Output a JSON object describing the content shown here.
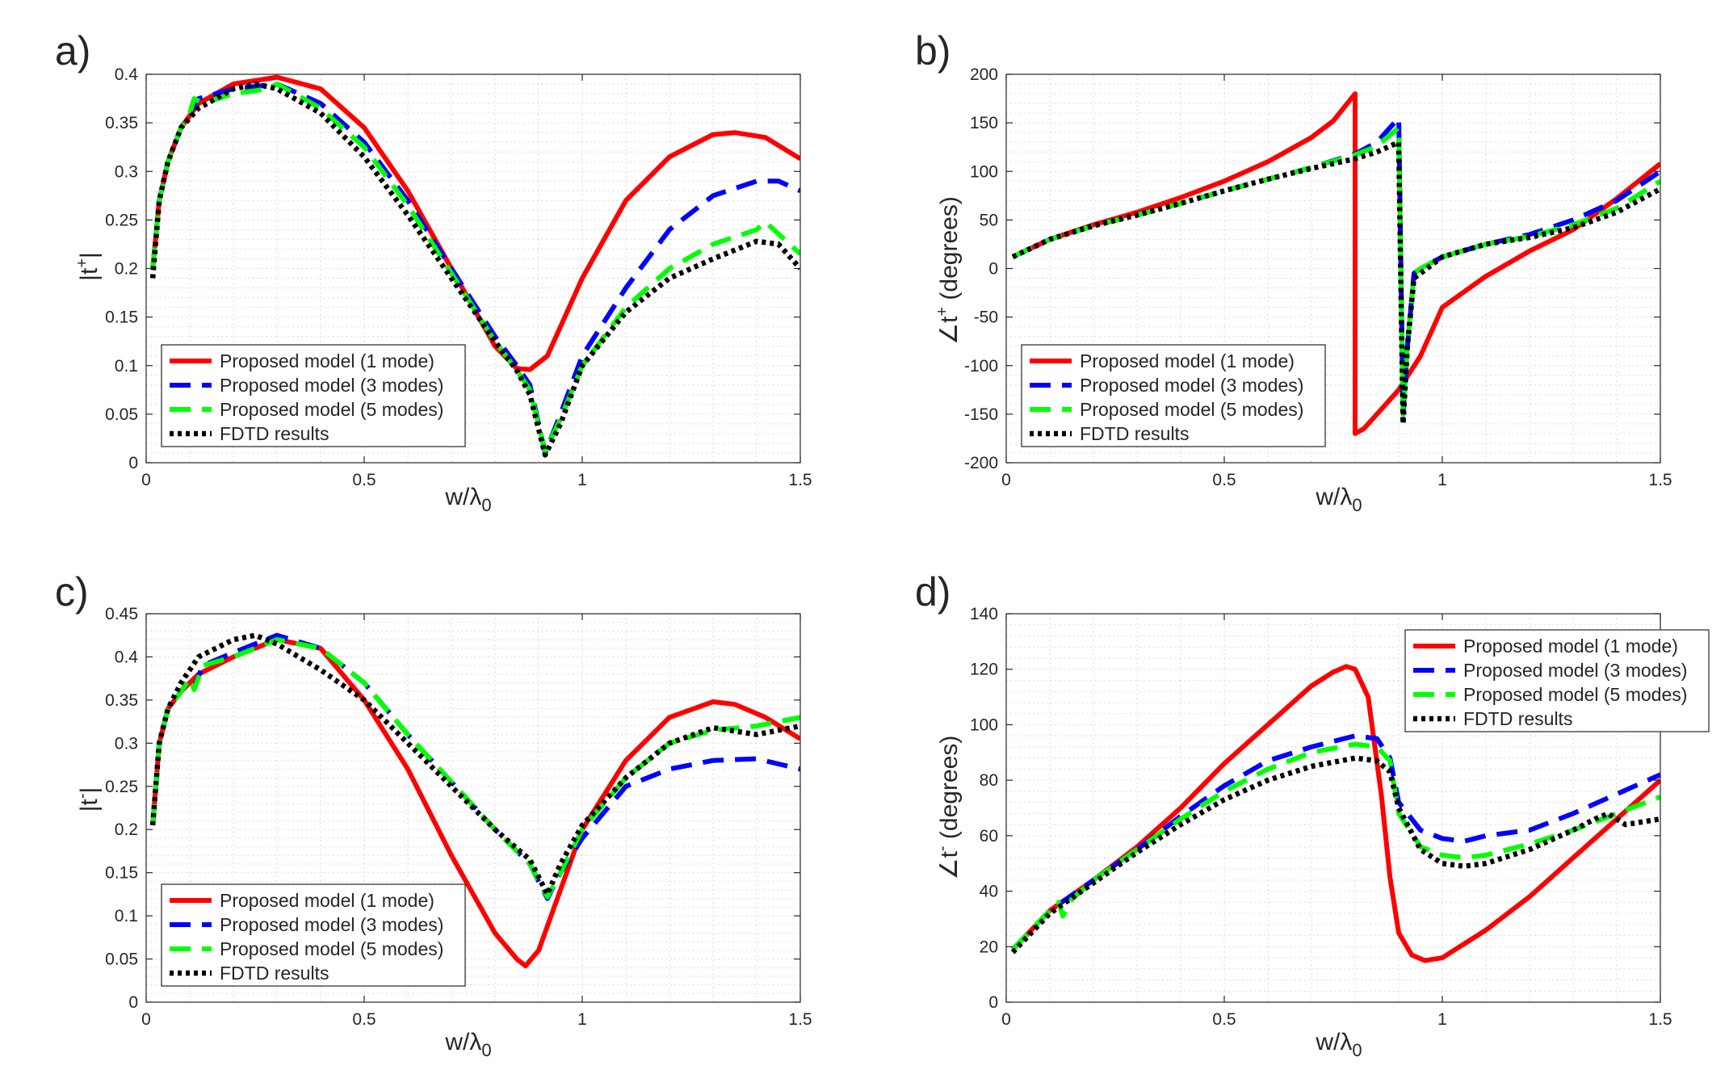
{
  "legend_labels": [
    "Proposed model (1 mode)",
    "Proposed model (3 modes)",
    "Proposed model (5 modes)",
    "FDTD results"
  ],
  "series_colors": [
    "#ff0000",
    "#0000ff",
    "#00ff00",
    "#000000"
  ],
  "chart_data": [
    {
      "panel": "a)",
      "type": "line",
      "xlabel": "w/λ0",
      "ylabel": "|t+|",
      "xlim": [
        0,
        1.5
      ],
      "ylim": [
        0,
        0.4
      ],
      "xticks": [
        "0",
        "0.5",
        "1",
        "1.5"
      ],
      "yticks": [
        "0",
        "0.05",
        "0.1",
        "0.15",
        "0.2",
        "0.25",
        "0.3",
        "0.35",
        "0.4"
      ],
      "legend_position": "bottom-left",
      "grid": true,
      "series": [
        {
          "name": "Proposed model (1 mode)",
          "style": "solid",
          "x": [
            0.015,
            0.03,
            0.05,
            0.08,
            0.12,
            0.2,
            0.3,
            0.4,
            0.5,
            0.6,
            0.7,
            0.8,
            0.85,
            0.88,
            0.92,
            1.0,
            1.1,
            1.2,
            1.3,
            1.35,
            1.42,
            1.5
          ],
          "y": [
            0.2,
            0.27,
            0.31,
            0.345,
            0.37,
            0.39,
            0.397,
            0.385,
            0.345,
            0.28,
            0.2,
            0.12,
            0.097,
            0.096,
            0.11,
            0.19,
            0.27,
            0.315,
            0.338,
            0.34,
            0.335,
            0.313
          ]
        },
        {
          "name": "Proposed model (3 modes)",
          "style": "dashed",
          "x": [
            0.015,
            0.03,
            0.05,
            0.08,
            0.1,
            0.12,
            0.2,
            0.3,
            0.4,
            0.5,
            0.6,
            0.7,
            0.8,
            0.85,
            0.88,
            0.915,
            0.95,
            1.0,
            1.1,
            1.2,
            1.3,
            1.4,
            1.45,
            1.5
          ],
          "y": [
            0.2,
            0.27,
            0.31,
            0.345,
            0.36,
            0.375,
            0.385,
            0.39,
            0.37,
            0.33,
            0.27,
            0.2,
            0.13,
            0.1,
            0.08,
            0.01,
            0.05,
            0.11,
            0.18,
            0.24,
            0.275,
            0.29,
            0.29,
            0.28
          ]
        },
        {
          "name": "Proposed model (5 modes)",
          "style": "dashed",
          "x": [
            0.015,
            0.03,
            0.05,
            0.08,
            0.1,
            0.11,
            0.13,
            0.2,
            0.28,
            0.3,
            0.4,
            0.5,
            0.6,
            0.7,
            0.8,
            0.85,
            0.88,
            0.915,
            0.95,
            1.0,
            1.1,
            1.2,
            1.3,
            1.4,
            1.42,
            1.5
          ],
          "y": [
            0.2,
            0.27,
            0.31,
            0.345,
            0.36,
            0.375,
            0.37,
            0.38,
            0.385,
            0.39,
            0.365,
            0.325,
            0.265,
            0.195,
            0.125,
            0.095,
            0.075,
            0.012,
            0.045,
            0.1,
            0.16,
            0.2,
            0.225,
            0.24,
            0.248,
            0.215
          ]
        },
        {
          "name": "FDTD results",
          "style": "dotted",
          "x": [
            0.015,
            0.03,
            0.05,
            0.08,
            0.12,
            0.2,
            0.25,
            0.3,
            0.4,
            0.5,
            0.6,
            0.7,
            0.8,
            0.85,
            0.88,
            0.915,
            0.95,
            1.0,
            1.1,
            1.2,
            1.3,
            1.4,
            1.45,
            1.5
          ],
          "y": [
            0.19,
            0.27,
            0.31,
            0.345,
            0.365,
            0.385,
            0.39,
            0.385,
            0.36,
            0.315,
            0.255,
            0.19,
            0.125,
            0.095,
            0.07,
            0.008,
            0.04,
            0.1,
            0.155,
            0.19,
            0.21,
            0.228,
            0.225,
            0.2
          ]
        }
      ]
    },
    {
      "panel": "b)",
      "type": "line",
      "xlabel": "w/λ0",
      "ylabel": "∠t+ (degrees)",
      "xlim": [
        0,
        1.5
      ],
      "ylim": [
        -200,
        200
      ],
      "xticks": [
        "0",
        "0.5",
        "1",
        "1.5"
      ],
      "yticks": [
        "-200",
        "-150",
        "-100",
        "-50",
        "0",
        "50",
        "100",
        "150",
        "200"
      ],
      "legend_position": "bottom-left",
      "grid": true,
      "series": [
        {
          "name": "Proposed model (1 mode)",
          "style": "solid",
          "x": [
            0.015,
            0.1,
            0.2,
            0.3,
            0.4,
            0.5,
            0.6,
            0.7,
            0.75,
            0.8,
            0.8,
            0.82,
            0.85,
            0.9,
            0.95,
            1.0,
            1.1,
            1.2,
            1.3,
            1.4,
            1.5
          ],
          "y": [
            12,
            30,
            45,
            58,
            73,
            90,
            110,
            135,
            152,
            180,
            -170,
            -165,
            -150,
            -125,
            -90,
            -40,
            -8,
            18,
            40,
            72,
            108
          ]
        },
        {
          "name": "Proposed model (3 modes)",
          "style": "dashed",
          "x": [
            0.015,
            0.1,
            0.2,
            0.3,
            0.4,
            0.5,
            0.6,
            0.7,
            0.8,
            0.85,
            0.9,
            0.91,
            0.92,
            0.935,
            0.95,
            1.0,
            1.1,
            1.2,
            1.3,
            1.4,
            1.5
          ],
          "y": [
            12,
            30,
            44,
            55,
            67,
            80,
            92,
            104,
            118,
            130,
            155,
            -150,
            -80,
            -5,
            0,
            12,
            25,
            35,
            50,
            70,
            100
          ]
        },
        {
          "name": "Proposed model (5 modes)",
          "style": "dashed",
          "x": [
            0.015,
            0.1,
            0.2,
            0.3,
            0.4,
            0.5,
            0.6,
            0.7,
            0.8,
            0.85,
            0.9,
            0.91,
            0.92,
            0.935,
            0.95,
            1.0,
            1.1,
            1.2,
            1.3,
            1.4,
            1.5
          ],
          "y": [
            12,
            30,
            44,
            55,
            67,
            80,
            92,
            104,
            117,
            126,
            145,
            -150,
            -80,
            -5,
            0,
            12,
            25,
            33,
            45,
            62,
            90
          ]
        },
        {
          "name": "FDTD results",
          "style": "dotted",
          "x": [
            0.015,
            0.1,
            0.2,
            0.3,
            0.4,
            0.5,
            0.6,
            0.7,
            0.8,
            0.85,
            0.9,
            0.91,
            0.92,
            0.935,
            0.95,
            1.0,
            1.1,
            1.2,
            1.3,
            1.4,
            1.5
          ],
          "y": [
            12,
            30,
            44,
            55,
            67,
            80,
            92,
            103,
            113,
            120,
            130,
            -160,
            -80,
            -10,
            -5,
            12,
            25,
            32,
            42,
            58,
            82
          ]
        }
      ]
    },
    {
      "panel": "c)",
      "type": "line",
      "xlabel": "w/λ0",
      "ylabel": "|t-|",
      "xlim": [
        0,
        1.5
      ],
      "ylim": [
        0,
        0.45
      ],
      "xticks": [
        "0",
        "0.5",
        "1",
        "1.5"
      ],
      "yticks": [
        "0",
        "0.05",
        "0.1",
        "0.15",
        "0.2",
        "0.25",
        "0.3",
        "0.35",
        "0.4",
        "0.45"
      ],
      "legend_position": "bottom-left",
      "grid": true,
      "series": [
        {
          "name": "Proposed model (1 mode)",
          "style": "solid",
          "x": [
            0.015,
            0.03,
            0.05,
            0.08,
            0.12,
            0.2,
            0.3,
            0.4,
            0.5,
            0.6,
            0.7,
            0.8,
            0.85,
            0.87,
            0.9,
            0.95,
            1.0,
            1.1,
            1.2,
            1.3,
            1.35,
            1.42,
            1.5
          ],
          "y": [
            0.205,
            0.3,
            0.34,
            0.36,
            0.38,
            0.4,
            0.42,
            0.41,
            0.35,
            0.27,
            0.17,
            0.08,
            0.05,
            0.042,
            0.06,
            0.13,
            0.2,
            0.28,
            0.33,
            0.348,
            0.345,
            0.33,
            0.305
          ]
        },
        {
          "name": "Proposed model (3 modes)",
          "style": "dashed",
          "x": [
            0.015,
            0.03,
            0.05,
            0.08,
            0.1,
            0.11,
            0.13,
            0.2,
            0.3,
            0.4,
            0.5,
            0.6,
            0.7,
            0.8,
            0.88,
            0.92,
            0.95,
            1.0,
            1.1,
            1.2,
            1.3,
            1.4,
            1.5
          ],
          "y": [
            0.205,
            0.3,
            0.34,
            0.36,
            0.375,
            0.365,
            0.39,
            0.405,
            0.425,
            0.41,
            0.37,
            0.31,
            0.255,
            0.2,
            0.16,
            0.12,
            0.15,
            0.19,
            0.25,
            0.27,
            0.28,
            0.282,
            0.27
          ]
        },
        {
          "name": "Proposed model (5 modes)",
          "style": "dashed",
          "x": [
            0.015,
            0.03,
            0.05,
            0.08,
            0.1,
            0.11,
            0.13,
            0.2,
            0.3,
            0.4,
            0.5,
            0.6,
            0.7,
            0.8,
            0.88,
            0.92,
            0.95,
            1.0,
            1.1,
            1.2,
            1.3,
            1.4,
            1.5
          ],
          "y": [
            0.205,
            0.3,
            0.34,
            0.36,
            0.375,
            0.362,
            0.39,
            0.4,
            0.42,
            0.41,
            0.37,
            0.31,
            0.255,
            0.2,
            0.16,
            0.122,
            0.15,
            0.2,
            0.26,
            0.3,
            0.315,
            0.32,
            0.33
          ]
        },
        {
          "name": "FDTD results",
          "style": "dotted",
          "x": [
            0.015,
            0.03,
            0.05,
            0.08,
            0.12,
            0.2,
            0.25,
            0.3,
            0.4,
            0.5,
            0.6,
            0.7,
            0.8,
            0.88,
            0.92,
            0.95,
            1.0,
            1.1,
            1.2,
            1.3,
            1.4,
            1.5
          ],
          "y": [
            0.205,
            0.3,
            0.34,
            0.37,
            0.4,
            0.42,
            0.425,
            0.415,
            0.385,
            0.35,
            0.3,
            0.25,
            0.2,
            0.165,
            0.125,
            0.16,
            0.205,
            0.26,
            0.3,
            0.318,
            0.31,
            0.32
          ]
        }
      ]
    },
    {
      "panel": "d)",
      "type": "line",
      "xlabel": "w/λ0",
      "ylabel": "∠t- (degrees)",
      "xlim": [
        0,
        1.5
      ],
      "ylim": [
        0,
        140
      ],
      "xticks": [
        "0",
        "0.5",
        "1",
        "1.5"
      ],
      "yticks": [
        "0",
        "20",
        "40",
        "60",
        "80",
        "100",
        "120",
        "140"
      ],
      "legend_position": "top-right",
      "grid": true,
      "series": [
        {
          "name": "Proposed model (1 mode)",
          "style": "solid",
          "x": [
            0.015,
            0.1,
            0.2,
            0.3,
            0.4,
            0.5,
            0.6,
            0.7,
            0.75,
            0.78,
            0.8,
            0.83,
            0.86,
            0.88,
            0.9,
            0.93,
            0.96,
            1.0,
            1.1,
            1.2,
            1.3,
            1.4,
            1.5
          ],
          "y": [
            19,
            33,
            44,
            56,
            70,
            86,
            100,
            114,
            119,
            121,
            120,
            110,
            75,
            45,
            25,
            17,
            15,
            16,
            26,
            38,
            52,
            66,
            80
          ]
        },
        {
          "name": "Proposed model (3 modes)",
          "style": "dashed",
          "x": [
            0.015,
            0.1,
            0.2,
            0.3,
            0.4,
            0.5,
            0.6,
            0.7,
            0.8,
            0.85,
            0.88,
            0.9,
            0.95,
            1.0,
            1.05,
            1.1,
            1.2,
            1.3,
            1.4,
            1.5
          ],
          "y": [
            19,
            33,
            44,
            55,
            67,
            78,
            87,
            92,
            96,
            95,
            88,
            72,
            62,
            59,
            58,
            60,
            62,
            68,
            75,
            82
          ]
        },
        {
          "name": "Proposed model (5 modes)",
          "style": "dashed",
          "x": [
            0.015,
            0.1,
            0.12,
            0.13,
            0.15,
            0.2,
            0.3,
            0.4,
            0.5,
            0.6,
            0.7,
            0.8,
            0.85,
            0.88,
            0.9,
            0.95,
            1.0,
            1.05,
            1.1,
            1.2,
            1.3,
            1.4,
            1.5
          ],
          "y": [
            19,
            33,
            36,
            31,
            37,
            44,
            55,
            66,
            76,
            84,
            90,
            93,
            92,
            87,
            68,
            56,
            53,
            52,
            53,
            57,
            62,
            68,
            74
          ]
        },
        {
          "name": "FDTD results",
          "style": "dotted",
          "x": [
            0.015,
            0.1,
            0.2,
            0.3,
            0.4,
            0.5,
            0.6,
            0.7,
            0.8,
            0.85,
            0.88,
            0.9,
            0.95,
            1.0,
            1.05,
            1.1,
            1.2,
            1.3,
            1.35,
            1.38,
            1.42,
            1.5
          ],
          "y": [
            18,
            32,
            43,
            54,
            64,
            73,
            80,
            85,
            88,
            87,
            83,
            70,
            55,
            50,
            49,
            50,
            55,
            62,
            66,
            68,
            64,
            66
          ]
        }
      ]
    }
  ]
}
